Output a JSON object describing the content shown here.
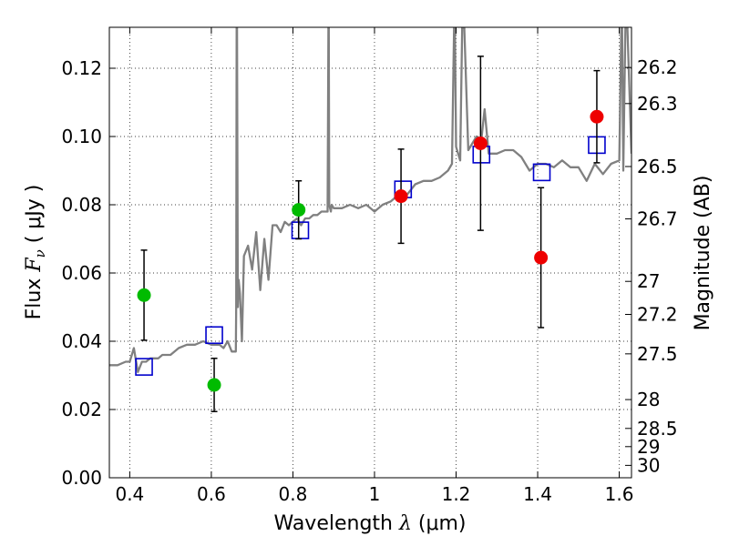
{
  "chart_data": {
    "type": "scatter",
    "xlabel_pre": "Wavelength  ",
    "xlabel_sym": "λ",
    "xlabel_unit": " (μm)",
    "ylabel_pre": "Flux  ",
    "ylabel_sym": "F",
    "ylabel_sub": "ν",
    "ylabel_unit": "  ( μJy )",
    "y2label": "Magnitude (AB)",
    "xlim": [
      0.35,
      1.63
    ],
    "ylim": [
      0.0,
      0.132
    ],
    "x_ticks": [
      0.4,
      0.6,
      0.8,
      1.0,
      1.2,
      1.4,
      1.6
    ],
    "x_tick_labels": [
      "0.4",
      "0.6",
      "0.8",
      "1",
      "1.2",
      "1.4",
      "1.6"
    ],
    "y_ticks": [
      0.0,
      0.02,
      0.04,
      0.06,
      0.08,
      0.1,
      0.12
    ],
    "y_tick_labels": [
      "0.00",
      "0.02",
      "0.04",
      "0.06",
      "0.08",
      "0.10",
      "0.12"
    ],
    "mag_ticks": [
      26.2,
      26.3,
      26.5,
      26.7,
      27,
      27.2,
      27.5,
      28,
      28.5,
      29,
      30
    ],
    "mag_tick_labels": [
      "26.2",
      "26.3",
      "26.5",
      "26.7",
      "27",
      "27.2",
      "27.5",
      "28",
      "28.5",
      "29",
      "30"
    ],
    "grid": true,
    "colors": {
      "model_line": "#808080",
      "model_squares": "#0000cc",
      "green_points": "#00bb00",
      "red_points": "#ee0000",
      "error_bars": "#000000"
    },
    "series": [
      {
        "marker": "line",
        "x": [
          0.35,
          0.37,
          0.39,
          0.4,
          0.41,
          0.42,
          0.43,
          0.44,
          0.45,
          0.46,
          0.47,
          0.48,
          0.49,
          0.5,
          0.52,
          0.54,
          0.56,
          0.58,
          0.6,
          0.62,
          0.63,
          0.64,
          0.65,
          0.66,
          0.661,
          0.662,
          0.663,
          0.665,
          0.667,
          0.67,
          0.675,
          0.68,
          0.69,
          0.7,
          0.71,
          0.72,
          0.73,
          0.74,
          0.75,
          0.76,
          0.77,
          0.78,
          0.79,
          0.8,
          0.81,
          0.82,
          0.83,
          0.84,
          0.85,
          0.86,
          0.87,
          0.88,
          0.885,
          0.887,
          0.888,
          0.889,
          0.891,
          0.893,
          0.895,
          0.9,
          0.92,
          0.94,
          0.96,
          0.98,
          1.0,
          1.02,
          1.04,
          1.06,
          1.08,
          1.1,
          1.12,
          1.14,
          1.16,
          1.18,
          1.19,
          1.195,
          1.197,
          1.2,
          1.21,
          1.215,
          1.22,
          1.23,
          1.24,
          1.25,
          1.26,
          1.27,
          1.28,
          1.3,
          1.32,
          1.34,
          1.36,
          1.38,
          1.4,
          1.42,
          1.44,
          1.46,
          1.48,
          1.5,
          1.52,
          1.54,
          1.56,
          1.58,
          1.6,
          1.605,
          1.607,
          1.61,
          1.615,
          1.62,
          1.63
        ],
        "y": [
          0.033,
          0.033,
          0.034,
          0.034,
          0.038,
          0.031,
          0.034,
          0.034,
          0.035,
          0.035,
          0.035,
          0.036,
          0.036,
          0.036,
          0.038,
          0.039,
          0.039,
          0.04,
          0.039,
          0.039,
          0.038,
          0.04,
          0.037,
          0.037,
          0.05,
          0.132,
          0.132,
          0.05,
          0.058,
          0.054,
          0.04,
          0.065,
          0.068,
          0.061,
          0.072,
          0.055,
          0.07,
          0.058,
          0.074,
          0.074,
          0.072,
          0.075,
          0.074,
          0.075,
          0.076,
          0.074,
          0.076,
          0.076,
          0.077,
          0.077,
          0.078,
          0.078,
          0.078,
          0.132,
          0.132,
          0.08,
          0.079,
          0.078,
          0.08,
          0.079,
          0.079,
          0.08,
          0.079,
          0.08,
          0.078,
          0.08,
          0.081,
          0.083,
          0.083,
          0.086,
          0.087,
          0.087,
          0.088,
          0.09,
          0.092,
          0.132,
          0.132,
          0.097,
          0.093,
          0.132,
          0.132,
          0.096,
          0.098,
          0.1,
          0.097,
          0.108,
          0.095,
          0.095,
          0.096,
          0.096,
          0.094,
          0.09,
          0.092,
          0.092,
          0.091,
          0.093,
          0.091,
          0.091,
          0.087,
          0.092,
          0.089,
          0.092,
          0.093,
          0.132,
          0.132,
          0.09,
          0.132,
          0.132,
          0.095
        ]
      },
      {
        "marker": "square",
        "x": [
          0.435,
          0.607,
          0.818,
          1.07,
          1.262,
          1.41,
          1.545
        ],
        "y": [
          0.0325,
          0.0418,
          0.0725,
          0.0845,
          0.0947,
          0.0895,
          0.0975
        ]
      },
      {
        "marker": "circle",
        "x": [
          0.435,
          0.607,
          0.814
        ],
        "y": [
          0.0535,
          0.0272,
          0.0785
        ],
        "yerr": [
          0.0132,
          0.0078,
          0.0085
        ]
      },
      {
        "marker": "circle",
        "x": [
          1.065,
          1.26,
          1.408,
          1.545
        ],
        "y": [
          0.0825,
          0.098,
          0.0645,
          0.1058
        ],
        "yerr": [
          0.0138,
          0.0255,
          0.0205,
          0.0135
        ]
      }
    ]
  }
}
